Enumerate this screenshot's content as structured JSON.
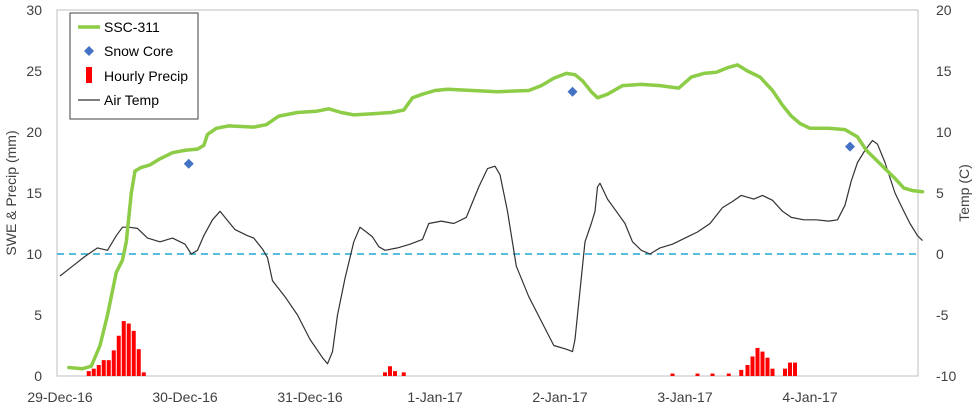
{
  "chart_data": {
    "type": "line",
    "title": "",
    "xlabel": "",
    "ylabel_left": "SWE & Precip (mm)",
    "ylabel_right": "Temp (C)",
    "ylim_left": [
      0,
      30
    ],
    "ylim_right": [
      -10,
      20
    ],
    "yticks_left": [
      "0",
      "5",
      "10",
      "15",
      "20",
      "25",
      "30"
    ],
    "yticks_right": [
      "-10",
      "-5",
      "0",
      "5",
      "10",
      "15",
      "20"
    ],
    "xticks": [
      "29-Dec-16",
      "30-Dec-16",
      "31-Dec-16",
      "1-Jan-17",
      "2-Jan-17",
      "3-Jan-17",
      "4-Jan-17"
    ],
    "xlim_days": [
      0,
      6.9
    ],
    "grid": "none",
    "legend_position": "top-left",
    "zero_temp_reference": {
      "temp": 0,
      "style": "dashed",
      "color": "#3fb4d8"
    },
    "series": [
      {
        "name": "SSC-311",
        "kind": "line",
        "axis": "left",
        "color": "#8ccc46",
        "points": [
          [
            0.07,
            0.7
          ],
          [
            0.18,
            0.6
          ],
          [
            0.25,
            0.8
          ],
          [
            0.32,
            2.5
          ],
          [
            0.38,
            5
          ],
          [
            0.45,
            8.5
          ],
          [
            0.5,
            9.5
          ],
          [
            0.53,
            11
          ],
          [
            0.57,
            15
          ],
          [
            0.6,
            16.8
          ],
          [
            0.65,
            17.1
          ],
          [
            0.72,
            17.3
          ],
          [
            0.8,
            17.8
          ],
          [
            0.9,
            18.3
          ],
          [
            1.0,
            18.5
          ],
          [
            1.1,
            18.6
          ],
          [
            1.15,
            18.9
          ],
          [
            1.18,
            19.8
          ],
          [
            1.25,
            20.3
          ],
          [
            1.35,
            20.5
          ],
          [
            1.55,
            20.4
          ],
          [
            1.65,
            20.6
          ],
          [
            1.75,
            21.3
          ],
          [
            1.9,
            21.6
          ],
          [
            2.05,
            21.7
          ],
          [
            2.15,
            21.9
          ],
          [
            2.25,
            21.6
          ],
          [
            2.35,
            21.4
          ],
          [
            2.5,
            21.5
          ],
          [
            2.65,
            21.6
          ],
          [
            2.75,
            21.8
          ],
          [
            2.82,
            22.8
          ],
          [
            2.9,
            23.1
          ],
          [
            3.0,
            23.4
          ],
          [
            3.1,
            23.5
          ],
          [
            3.3,
            23.4
          ],
          [
            3.5,
            23.3
          ],
          [
            3.75,
            23.4
          ],
          [
            3.85,
            23.8
          ],
          [
            3.95,
            24.4
          ],
          [
            4.05,
            24.8
          ],
          [
            4.12,
            24.7
          ],
          [
            4.18,
            24.2
          ],
          [
            4.25,
            23.3
          ],
          [
            4.3,
            22.8
          ],
          [
            4.38,
            23.1
          ],
          [
            4.5,
            23.8
          ],
          [
            4.65,
            23.9
          ],
          [
            4.8,
            23.8
          ],
          [
            4.95,
            23.6
          ],
          [
            5.05,
            24.5
          ],
          [
            5.15,
            24.8
          ],
          [
            5.25,
            24.9
          ],
          [
            5.35,
            25.3
          ],
          [
            5.42,
            25.5
          ],
          [
            5.5,
            25.0
          ],
          [
            5.6,
            24.5
          ],
          [
            5.7,
            23.4
          ],
          [
            5.78,
            22.2
          ],
          [
            5.85,
            21.3
          ],
          [
            5.92,
            20.7
          ],
          [
            6.0,
            20.3
          ],
          [
            6.15,
            20.3
          ],
          [
            6.28,
            20.2
          ],
          [
            6.38,
            19.6
          ],
          [
            6.45,
            18.5
          ],
          [
            6.52,
            17.8
          ],
          [
            6.6,
            17.0
          ],
          [
            6.68,
            16.2
          ],
          [
            6.75,
            15.4
          ],
          [
            6.82,
            15.2
          ],
          [
            6.9,
            15.1
          ]
        ]
      },
      {
        "name": "Snow Core",
        "kind": "scatter",
        "axis": "left",
        "color": "#4472c4",
        "points": [
          [
            1.03,
            17.4
          ],
          [
            4.1,
            23.3
          ],
          [
            6.32,
            18.8
          ]
        ]
      },
      {
        "name": "Hourly Precip",
        "kind": "bar",
        "axis": "left",
        "color": "#ff0000",
        "points": [
          [
            0.23,
            0.4
          ],
          [
            0.27,
            0.6
          ],
          [
            0.31,
            0.9
          ],
          [
            0.35,
            1.3
          ],
          [
            0.39,
            1.3
          ],
          [
            0.43,
            2.1
          ],
          [
            0.47,
            3.3
          ],
          [
            0.51,
            4.5
          ],
          [
            0.55,
            4.3
          ],
          [
            0.59,
            3.7
          ],
          [
            0.63,
            2.2
          ],
          [
            0.67,
            0.3
          ],
          [
            2.6,
            0.3
          ],
          [
            2.64,
            0.8
          ],
          [
            2.68,
            0.4
          ],
          [
            2.75,
            0.3
          ],
          [
            4.9,
            0.2
          ],
          [
            5.1,
            0.2
          ],
          [
            5.22,
            0.2
          ],
          [
            5.35,
            0.2
          ],
          [
            5.45,
            0.5
          ],
          [
            5.5,
            0.9
          ],
          [
            5.54,
            1.6
          ],
          [
            5.58,
            2.3
          ],
          [
            5.62,
            2.0
          ],
          [
            5.66,
            1.5
          ],
          [
            5.7,
            0.6
          ],
          [
            5.8,
            0.6
          ],
          [
            5.84,
            1.1
          ],
          [
            5.88,
            1.1
          ]
        ]
      },
      {
        "name": "Air Temp",
        "kind": "line",
        "axis": "right",
        "color": "#333333",
        "points": [
          [
            0.0,
            -1.8
          ],
          [
            0.1,
            -1.0
          ],
          [
            0.2,
            -0.2
          ],
          [
            0.3,
            0.5
          ],
          [
            0.38,
            0.3
          ],
          [
            0.45,
            1.5
          ],
          [
            0.5,
            2.2
          ],
          [
            0.55,
            2.2
          ],
          [
            0.62,
            2.1
          ],
          [
            0.7,
            1.3
          ],
          [
            0.8,
            1.0
          ],
          [
            0.9,
            1.3
          ],
          [
            1.0,
            0.8
          ],
          [
            1.05,
            0.0
          ],
          [
            1.1,
            0.3
          ],
          [
            1.15,
            1.5
          ],
          [
            1.22,
            2.8
          ],
          [
            1.28,
            3.5
          ],
          [
            1.32,
            3.0
          ],
          [
            1.4,
            2.0
          ],
          [
            1.5,
            1.5
          ],
          [
            1.55,
            1.3
          ],
          [
            1.62,
            0.4
          ],
          [
            1.66,
            -0.3
          ],
          [
            1.7,
            -2.2
          ],
          [
            1.8,
            -3.5
          ],
          [
            1.9,
            -5.0
          ],
          [
            2.0,
            -7.0
          ],
          [
            2.1,
            -8.5
          ],
          [
            2.14,
            -9.0
          ],
          [
            2.18,
            -8.0
          ],
          [
            2.22,
            -5.0
          ],
          [
            2.28,
            -2.0
          ],
          [
            2.35,
            1.0
          ],
          [
            2.4,
            2.2
          ],
          [
            2.45,
            1.8
          ],
          [
            2.5,
            1.4
          ],
          [
            2.55,
            0.6
          ],
          [
            2.6,
            0.3
          ],
          [
            2.7,
            0.5
          ],
          [
            2.8,
            0.8
          ],
          [
            2.9,
            1.2
          ],
          [
            2.95,
            2.5
          ],
          [
            3.05,
            2.7
          ],
          [
            3.15,
            2.5
          ],
          [
            3.25,
            3.0
          ],
          [
            3.35,
            5.5
          ],
          [
            3.42,
            7.0
          ],
          [
            3.48,
            7.2
          ],
          [
            3.52,
            6.5
          ],
          [
            3.58,
            3.5
          ],
          [
            3.65,
            -1.0
          ],
          [
            3.75,
            -3.5
          ],
          [
            3.85,
            -5.5
          ],
          [
            3.95,
            -7.5
          ],
          [
            4.05,
            -7.8
          ],
          [
            4.1,
            -8.0
          ],
          [
            4.12,
            -7.0
          ],
          [
            4.16,
            -3.0
          ],
          [
            4.2,
            1.0
          ],
          [
            4.25,
            2.5
          ],
          [
            4.28,
            3.5
          ],
          [
            4.3,
            5.5
          ],
          [
            4.32,
            5.8
          ],
          [
            4.38,
            4.5
          ],
          [
            4.45,
            3.5
          ],
          [
            4.52,
            2.5
          ],
          [
            4.58,
            1.0
          ],
          [
            4.65,
            0.3
          ],
          [
            4.72,
            0.0
          ],
          [
            4.8,
            0.5
          ],
          [
            4.9,
            0.8
          ],
          [
            5.0,
            1.3
          ],
          [
            5.1,
            1.8
          ],
          [
            5.2,
            2.5
          ],
          [
            5.3,
            3.8
          ],
          [
            5.38,
            4.3
          ],
          [
            5.45,
            4.8
          ],
          [
            5.55,
            4.5
          ],
          [
            5.62,
            4.8
          ],
          [
            5.7,
            4.4
          ],
          [
            5.78,
            3.5
          ],
          [
            5.85,
            3.0
          ],
          [
            5.95,
            2.8
          ],
          [
            6.05,
            2.8
          ],
          [
            6.15,
            2.7
          ],
          [
            6.22,
            2.8
          ],
          [
            6.28,
            4.0
          ],
          [
            6.33,
            6.0
          ],
          [
            6.38,
            7.5
          ],
          [
            6.44,
            8.5
          ],
          [
            6.5,
            9.3
          ],
          [
            6.54,
            9.0
          ],
          [
            6.6,
            7.5
          ],
          [
            6.68,
            5.0
          ],
          [
            6.75,
            3.5
          ],
          [
            6.8,
            2.5
          ],
          [
            6.86,
            1.5
          ],
          [
            6.9,
            1.1
          ]
        ]
      }
    ]
  },
  "legend": {
    "entries": [
      {
        "label": "SSC-311",
        "icon": "line-icon",
        "color": "#8ccc46"
      },
      {
        "label": "Snow Core",
        "icon": "diamond-icon",
        "color": "#4472c4"
      },
      {
        "label": "Hourly Precip",
        "icon": "bar-icon",
        "color": "#ff0000"
      },
      {
        "label": "Air Temp",
        "icon": "line-icon",
        "color": "#333333"
      }
    ]
  }
}
